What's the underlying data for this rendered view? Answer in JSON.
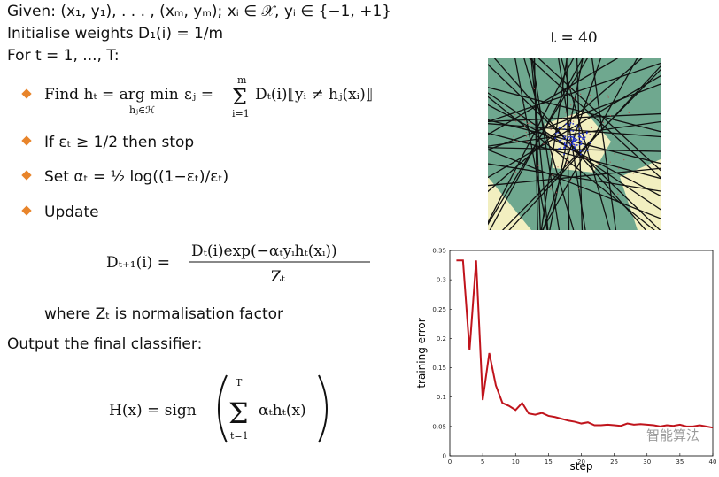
{
  "slide": {
    "given": "Given: (x₁, y₁), . . . , (xₘ, yₘ); xᵢ ∈ 𝒳, yᵢ ∈ {−1, +1}",
    "init": "Initialise weights D₁(i) = 1/m",
    "loop": "For t = 1, ..., T:",
    "find": {
      "lead": "Find hₜ = arg min",
      "under": "hⱼ∈ℋ",
      "eps": "εⱼ =",
      "upper": "m",
      "sigma": "Σ",
      "lower": "i=1",
      "rest": "Dₜ(i)⟦yᵢ ≠ hⱼ(xᵢ)⟧"
    },
    "stop": "If εₜ ≥ 1/2 then stop",
    "set": "Set αₜ = ½ log((1−εₜ)/εₜ)",
    "update": "Update",
    "update_formula": {
      "lhs": "Dₜ₊₁(i) =",
      "numerator": "Dₜ(i)exp(−αₜyᵢhₜ(xᵢ))",
      "denominator": "Zₜ"
    },
    "where": "where Zₜ is normalisation factor",
    "output": "Output the final classifier:",
    "final": {
      "lhs": "H(x) = sign",
      "upper": "T",
      "sigma": "Σ",
      "lower": "t=1",
      "body": "αₜhₜ(x)"
    }
  },
  "illustration": {
    "title": "t = 40"
  },
  "chart_data": {
    "type": "line",
    "xlabel": "step",
    "ylabel": "training error",
    "color": "#c0141c",
    "x": [
      1,
      2,
      3,
      4,
      5,
      6,
      7,
      8,
      9,
      10,
      11,
      12,
      13,
      14,
      15,
      16,
      17,
      18,
      19,
      20,
      21,
      22,
      23,
      24,
      25,
      26,
      27,
      28,
      29,
      30,
      31,
      32,
      33,
      34,
      35,
      36,
      37,
      38,
      39,
      40
    ],
    "values": [
      0.333,
      0.333,
      0.18,
      0.333,
      0.095,
      0.175,
      0.12,
      0.09,
      0.085,
      0.078,
      0.09,
      0.072,
      0.07,
      0.073,
      0.068,
      0.066,
      0.063,
      0.06,
      0.058,
      0.055,
      0.057,
      0.052,
      0.052,
      0.053,
      0.052,
      0.051,
      0.055,
      0.053,
      0.054,
      0.053,
      0.052,
      0.05,
      0.052,
      0.051,
      0.053,
      0.05,
      0.05,
      0.052,
      0.05,
      0.048
    ],
    "xlim": [
      0,
      40
    ],
    "ylim": [
      0,
      0.35
    ],
    "xticks": [
      0,
      5,
      10,
      15,
      20,
      25,
      30,
      35,
      40
    ],
    "yticks": [
      0,
      0.05,
      0.1,
      0.15,
      0.2,
      0.25,
      0.3,
      0.35
    ]
  },
  "watermark": "智能算法"
}
